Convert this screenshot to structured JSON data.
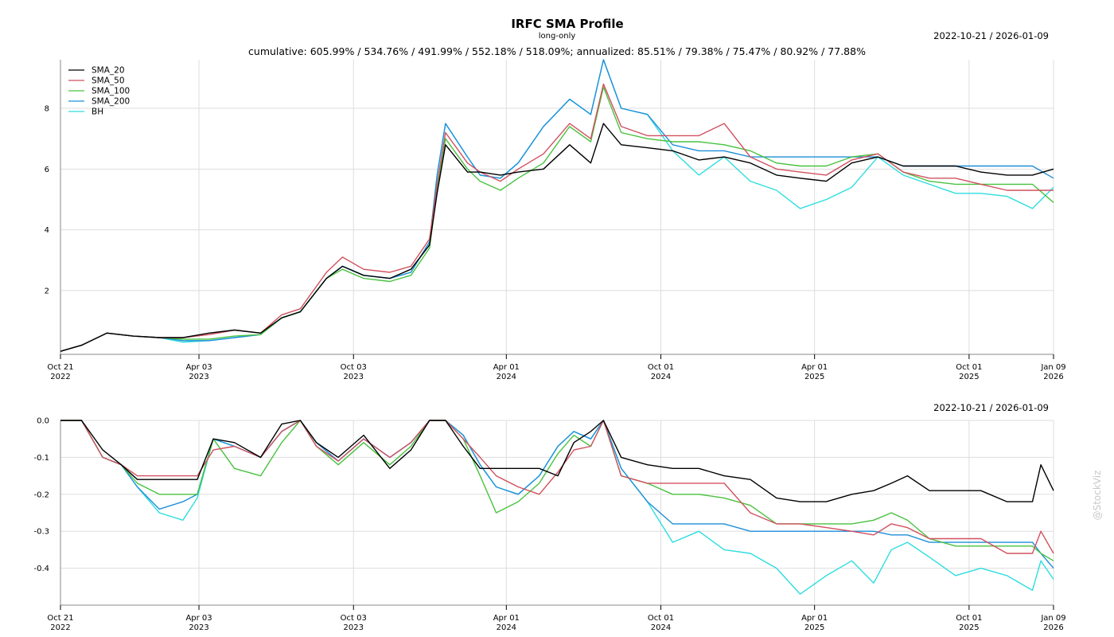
{
  "header": {
    "title": "IRFC SMA Profile",
    "subtitle": "long-only",
    "stats": "cumulative: 605.99% / 534.76% / 491.99% / 552.18% / 518.09%; annualized: 85.51% / 79.38% / 75.47% / 80.92% / 77.88%",
    "date_range": "2022-10-21 / 2026-01-09"
  },
  "watermark": "@StockViz",
  "colors": {
    "SMA_20": "#000000",
    "SMA_50": "#d1505f",
    "SMA_100": "#48c23f",
    "SMA_200": "#1f8fd9",
    "BH": "#2ddde0",
    "grid": "#dddddd",
    "axis": "#888888"
  },
  "chart_data": [
    {
      "type": "line",
      "name": "cumulative-returns",
      "date_range": "2022-10-21 / 2026-01-09",
      "xlim": [
        "2022-10-21",
        "2026-01-09"
      ],
      "ylim": [
        -0.1,
        9.6
      ],
      "yticks": [
        2,
        4,
        6,
        8
      ],
      "ytick_labels": [
        "2",
        "4",
        "6",
        "8"
      ],
      "xticks": [
        {
          "date": "2022-10-21",
          "line1": "Oct 21",
          "line2": "2022"
        },
        {
          "date": "2023-04-03",
          "line1": "Apr 03",
          "line2": "2023"
        },
        {
          "date": "2023-10-03",
          "line1": "Oct 03",
          "line2": "2023"
        },
        {
          "date": "2024-04-01",
          "line1": "Apr 01",
          "line2": "2024"
        },
        {
          "date": "2024-10-01",
          "line1": "Oct 01",
          "line2": "2024"
        },
        {
          "date": "2025-04-01",
          "line1": "Apr 01",
          "line2": "2025"
        },
        {
          "date": "2025-10-01",
          "line1": "Oct 01",
          "line2": "2025"
        },
        {
          "date": "2026-01-09",
          "line1": "Jan 09",
          "line2": "2026"
        }
      ],
      "grid": true,
      "legend": "top-left",
      "x": [
        "2022-10-21",
        "2022-11-15",
        "2022-12-15",
        "2023-01-15",
        "2023-02-15",
        "2023-03-15",
        "2023-04-15",
        "2023-05-15",
        "2023-06-15",
        "2023-07-10",
        "2023-08-01",
        "2023-09-01",
        "2023-09-20",
        "2023-10-15",
        "2023-11-15",
        "2023-12-10",
        "2024-01-01",
        "2024-01-10",
        "2024-01-20",
        "2024-02-15",
        "2024-03-01",
        "2024-03-25",
        "2024-04-15",
        "2024-05-15",
        "2024-06-15",
        "2024-07-10",
        "2024-07-25",
        "2024-08-15",
        "2024-09-15",
        "2024-10-15",
        "2024-11-15",
        "2024-12-15",
        "2025-01-15",
        "2025-02-15",
        "2025-03-15",
        "2025-04-15",
        "2025-05-15",
        "2025-06-15",
        "2025-07-15",
        "2025-08-15",
        "2025-09-15",
        "2025-10-15",
        "2025-11-15",
        "2025-12-15",
        "2026-01-09"
      ],
      "series": [
        {
          "name": "SMA_20",
          "values": [
            0.0,
            0.2,
            0.6,
            0.5,
            0.45,
            0.45,
            0.6,
            0.7,
            0.6,
            1.1,
            1.3,
            2.4,
            2.8,
            2.5,
            2.4,
            2.7,
            3.5,
            5.2,
            6.8,
            5.9,
            5.9,
            5.8,
            5.9,
            6.0,
            6.8,
            6.2,
            7.5,
            6.8,
            6.7,
            6.6,
            6.3,
            6.4,
            6.2,
            5.8,
            5.7,
            5.6,
            6.2,
            6.4,
            6.1,
            6.1,
            6.1,
            5.9,
            5.8,
            5.8,
            6.0
          ]
        },
        {
          "name": "SMA_50",
          "values": [
            0.0,
            0.2,
            0.6,
            0.5,
            0.45,
            0.45,
            0.55,
            0.7,
            0.6,
            1.2,
            1.4,
            2.6,
            3.1,
            2.7,
            2.6,
            2.8,
            3.7,
            5.5,
            7.2,
            6.2,
            5.9,
            5.6,
            6.0,
            6.5,
            7.5,
            7.0,
            8.8,
            7.4,
            7.1,
            7.1,
            7.1,
            7.5,
            6.4,
            6.0,
            5.9,
            5.8,
            6.3,
            6.5,
            5.9,
            5.7,
            5.7,
            5.5,
            5.3,
            5.3,
            5.3
          ]
        },
        {
          "name": "SMA_100",
          "values": [
            0.0,
            0.2,
            0.6,
            0.5,
            0.45,
            0.4,
            0.4,
            0.5,
            0.55,
            1.1,
            1.3,
            2.4,
            2.7,
            2.4,
            2.3,
            2.5,
            3.4,
            5.3,
            7.0,
            6.0,
            5.6,
            5.3,
            5.7,
            6.2,
            7.4,
            6.9,
            8.7,
            7.2,
            7.0,
            6.9,
            6.9,
            6.8,
            6.6,
            6.2,
            6.1,
            6.1,
            6.4,
            6.5,
            5.9,
            5.6,
            5.5,
            5.5,
            5.5,
            5.5,
            4.9
          ]
        },
        {
          "name": "SMA_200",
          "values": [
            0.0,
            0.2,
            0.6,
            0.5,
            0.45,
            0.35,
            0.35,
            0.45,
            0.55,
            1.1,
            1.3,
            2.4,
            2.8,
            2.5,
            2.4,
            2.6,
            3.6,
            5.8,
            7.5,
            6.4,
            5.8,
            5.7,
            6.2,
            7.4,
            8.3,
            7.8,
            9.6,
            8.0,
            7.8,
            6.8,
            6.6,
            6.6,
            6.4,
            6.4,
            6.4,
            6.4,
            6.4,
            6.4,
            6.1,
            6.1,
            6.1,
            6.1,
            6.1,
            6.1,
            5.7
          ]
        },
        {
          "name": "BH",
          "values": [
            0.0,
            0.2,
            0.6,
            0.5,
            0.45,
            0.3,
            0.35,
            0.45,
            0.55,
            1.1,
            1.3,
            2.4,
            2.8,
            2.5,
            2.4,
            2.6,
            3.6,
            5.8,
            7.5,
            6.4,
            5.8,
            5.7,
            6.2,
            7.4,
            8.3,
            7.8,
            9.6,
            8.0,
            7.8,
            6.6,
            5.8,
            6.4,
            5.6,
            5.3,
            4.7,
            5.0,
            5.4,
            6.4,
            5.8,
            5.5,
            5.2,
            5.2,
            5.1,
            4.7,
            5.4
          ]
        }
      ]
    },
    {
      "type": "line",
      "name": "drawdowns",
      "date_range": "2022-10-21 / 2026-01-09",
      "xlim": [
        "2022-10-21",
        "2026-01-09"
      ],
      "ylim": [
        -0.5,
        0.0
      ],
      "yticks": [
        0.0,
        -0.1,
        -0.2,
        -0.3,
        -0.4
      ],
      "ytick_labels": [
        "0.0",
        "-0.1",
        "-0.2",
        "-0.3",
        "-0.4"
      ],
      "xticks": [
        {
          "date": "2022-10-21",
          "line1": "Oct 21",
          "line2": "2022"
        },
        {
          "date": "2023-04-03",
          "line1": "Apr 03",
          "line2": "2023"
        },
        {
          "date": "2023-10-03",
          "line1": "Oct 03",
          "line2": "2023"
        },
        {
          "date": "2024-04-01",
          "line1": "Apr 01",
          "line2": "2024"
        },
        {
          "date": "2024-10-01",
          "line1": "Oct 01",
          "line2": "2024"
        },
        {
          "date": "2025-04-01",
          "line1": "Apr 01",
          "line2": "2025"
        },
        {
          "date": "2025-10-01",
          "line1": "Oct 01",
          "line2": "2025"
        },
        {
          "date": "2026-01-09",
          "line1": "Jan 09",
          "line2": "2026"
        }
      ],
      "grid": true,
      "x": [
        "2022-10-21",
        "2022-11-15",
        "2022-12-10",
        "2023-01-01",
        "2023-01-20",
        "2023-02-15",
        "2023-03-15",
        "2023-04-01",
        "2023-04-20",
        "2023-05-15",
        "2023-06-15",
        "2023-07-10",
        "2023-08-01",
        "2023-08-20",
        "2023-09-15",
        "2023-10-15",
        "2023-11-15",
        "2023-12-10",
        "2024-01-01",
        "2024-01-20",
        "2024-02-10",
        "2024-03-01",
        "2024-03-20",
        "2024-04-15",
        "2024-05-10",
        "2024-06-01",
        "2024-06-20",
        "2024-07-10",
        "2024-07-25",
        "2024-08-15",
        "2024-09-15",
        "2024-10-15",
        "2024-11-15",
        "2024-12-15",
        "2025-01-15",
        "2025-02-15",
        "2025-03-15",
        "2025-04-15",
        "2025-05-15",
        "2025-06-10",
        "2025-07-01",
        "2025-07-20",
        "2025-08-15",
        "2025-09-15",
        "2025-10-15",
        "2025-11-15",
        "2025-12-15",
        "2025-12-25",
        "2026-01-09"
      ],
      "series": [
        {
          "name": "SMA_20",
          "values": [
            0.0,
            0.0,
            -0.08,
            -0.12,
            -0.16,
            -0.16,
            -0.16,
            -0.16,
            -0.05,
            -0.06,
            -0.1,
            -0.01,
            -0.0,
            -0.06,
            -0.1,
            -0.04,
            -0.13,
            -0.08,
            0.0,
            0.0,
            -0.07,
            -0.13,
            -0.13,
            -0.13,
            -0.13,
            -0.15,
            -0.06,
            -0.03,
            0.0,
            -0.1,
            -0.12,
            -0.13,
            -0.13,
            -0.15,
            -0.16,
            -0.21,
            -0.22,
            -0.22,
            -0.2,
            -0.19,
            -0.17,
            -0.15,
            -0.19,
            -0.19,
            -0.19,
            -0.22,
            -0.22,
            -0.12,
            -0.19
          ]
        },
        {
          "name": "SMA_50",
          "values": [
            0.0,
            0.0,
            -0.1,
            -0.12,
            -0.15,
            -0.15,
            -0.15,
            -0.15,
            -0.08,
            -0.07,
            -0.1,
            -0.03,
            0.0,
            -0.07,
            -0.11,
            -0.05,
            -0.1,
            -0.06,
            0.0,
            0.0,
            -0.05,
            -0.1,
            -0.15,
            -0.18,
            -0.2,
            -0.14,
            -0.08,
            -0.07,
            0.0,
            -0.15,
            -0.17,
            -0.17,
            -0.17,
            -0.17,
            -0.25,
            -0.28,
            -0.28,
            -0.29,
            -0.3,
            -0.31,
            -0.28,
            -0.29,
            -0.32,
            -0.32,
            -0.32,
            -0.36,
            -0.36,
            -0.3,
            -0.36
          ]
        },
        {
          "name": "SMA_100",
          "values": [
            0.0,
            0.0,
            -0.1,
            -0.12,
            -0.17,
            -0.2,
            -0.2,
            -0.2,
            -0.05,
            -0.13,
            -0.15,
            -0.06,
            0.0,
            -0.07,
            -0.12,
            -0.06,
            -0.12,
            -0.07,
            0.0,
            0.0,
            -0.05,
            -0.15,
            -0.25,
            -0.22,
            -0.17,
            -0.09,
            -0.04,
            -0.07,
            0.0,
            -0.15,
            -0.17,
            -0.2,
            -0.2,
            -0.21,
            -0.23,
            -0.28,
            -0.28,
            -0.28,
            -0.28,
            -0.27,
            -0.25,
            -0.27,
            -0.32,
            -0.34,
            -0.34,
            -0.34,
            -0.34,
            -0.36,
            -0.38
          ]
        },
        {
          "name": "SMA_200",
          "values": [
            0.0,
            0.0,
            -0.1,
            -0.12,
            -0.18,
            -0.24,
            -0.22,
            -0.2,
            -0.05,
            -0.07,
            -0.1,
            -0.03,
            0.0,
            -0.06,
            -0.11,
            -0.05,
            -0.1,
            -0.06,
            0.0,
            0.0,
            -0.04,
            -0.12,
            -0.18,
            -0.2,
            -0.15,
            -0.07,
            -0.03,
            -0.05,
            0.0,
            -0.13,
            -0.22,
            -0.28,
            -0.28,
            -0.28,
            -0.3,
            -0.3,
            -0.3,
            -0.3,
            -0.3,
            -0.3,
            -0.31,
            -0.31,
            -0.33,
            -0.33,
            -0.33,
            -0.33,
            -0.33,
            -0.36,
            -0.4
          ]
        },
        {
          "name": "BH",
          "values": [
            0.0,
            0.0,
            -0.1,
            -0.12,
            -0.18,
            -0.25,
            -0.27,
            -0.21,
            -0.05,
            -0.07,
            -0.1,
            -0.03,
            0.0,
            -0.06,
            -0.11,
            -0.05,
            -0.1,
            -0.06,
            0.0,
            0.0,
            -0.04,
            -0.12,
            -0.18,
            -0.2,
            -0.15,
            -0.07,
            -0.03,
            -0.05,
            0.0,
            -0.13,
            -0.22,
            -0.33,
            -0.3,
            -0.35,
            -0.36,
            -0.4,
            -0.47,
            -0.42,
            -0.38,
            -0.44,
            -0.35,
            -0.33,
            -0.37,
            -0.42,
            -0.4,
            -0.42,
            -0.46,
            -0.38,
            -0.43
          ]
        }
      ]
    }
  ]
}
